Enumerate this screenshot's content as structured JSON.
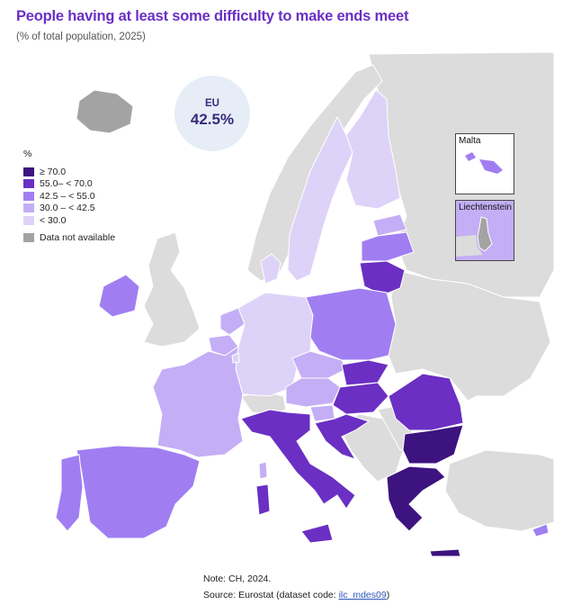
{
  "title": "People having at least some difficulty to make ends meet",
  "subtitle": "(% of total population, 2025)",
  "eu": {
    "label": "EU",
    "value": "42.5%"
  },
  "legend": {
    "unit": "%",
    "classes": [
      {
        "label": "≥ 70.0",
        "color": "#3d1380"
      },
      {
        "label": "55.0– < 70.0",
        "color": "#6b2fc4"
      },
      {
        "label": "42.5 – < 55.0",
        "color": "#a07ef2"
      },
      {
        "label": "30.0 – < 42.5",
        "color": "#c4aef5"
      },
      {
        "label": "< 30.0",
        "color": "#ddd3f8"
      }
    ],
    "na_label": "Data not available",
    "na_color": "#a3a3a3"
  },
  "insets": {
    "malta": "Malta",
    "liechtenstein": "Liechtenstein"
  },
  "note": "Note: CH, 2024.",
  "source_prefix": "Source: Eurostat (dataset code: ",
  "source_code": "ilc_mdes09",
  "source_suffix": ")",
  "colors": {
    "non_eu_land": "#dcdcdc",
    "border": "#ffffff",
    "title": "#6a2fc4",
    "badge": "#e6edf7"
  }
}
